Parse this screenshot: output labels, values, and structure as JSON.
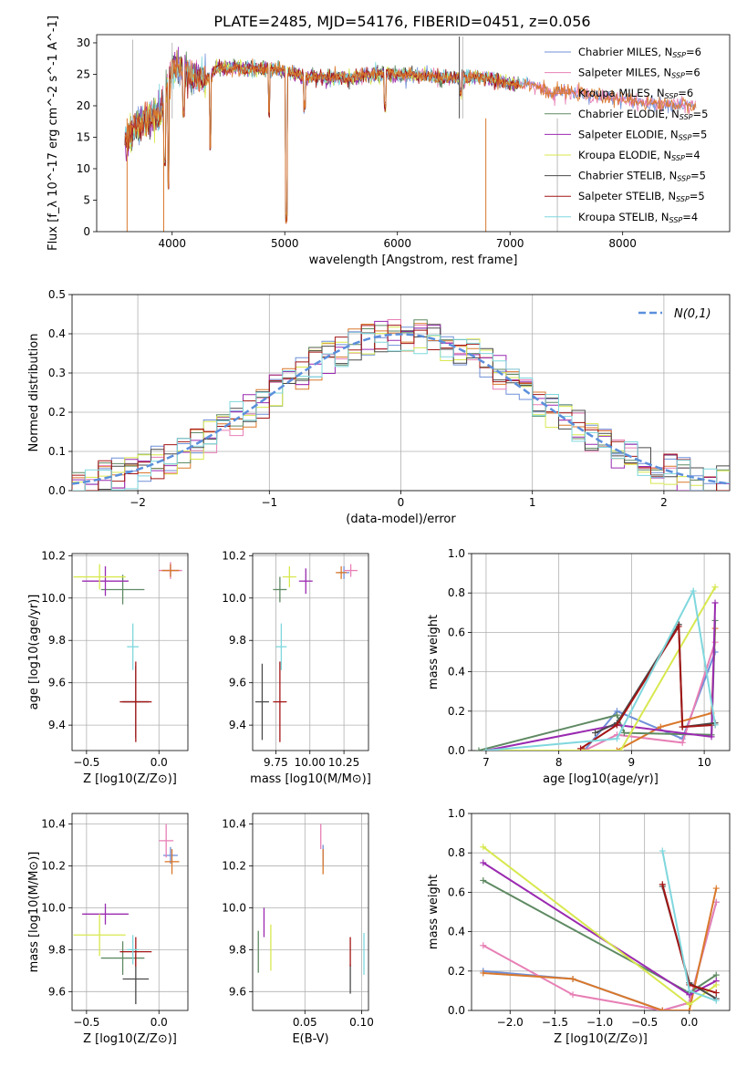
{
  "figure_title": "PLATE=2485, MJD=54176, FIBERID=0451, z=0.056",
  "series_names": [
    "Chabrier MILES, N_SSP=6",
    "Salpeter MILES, N_SSP=6",
    "Kroupa MILES, N_SSP=6",
    "Chabrier ELODIE, N_SSP=5",
    "Salpeter ELODIE, N_SSP=5",
    "Kroupa ELODIE, N_SSP=4",
    "Chabrier STELIB, N_SSP=5",
    "Salpeter STELIB, N_SSP=5",
    "Kroupa STELIB, N_SSP=4"
  ],
  "series_colors": [
    "#6f8fd8",
    "#e77fb5",
    "#d9782b",
    "#5f8a63",
    "#9a2ab0",
    "#d8e84f",
    "#4a4a4a",
    "#a31515",
    "#7fd7dd"
  ],
  "chart_data": [
    {
      "type": "line",
      "id": "spectrum",
      "title": "PLATE=2485, MJD=54176, FIBERID=0451, z=0.056",
      "xlabel": "wavelength [Angstrom, rest frame]",
      "ylabel": "Flux [f_λ 10^-17 erg cm^-2 s^-1 A^-1]",
      "xlim": [
        3330,
        8950
      ],
      "ylim": [
        0,
        31.3
      ],
      "xticks": [
        4000,
        5000,
        6000,
        7000,
        8000
      ],
      "yticks": [
        0,
        5,
        10,
        15,
        20,
        25,
        30
      ],
      "grid": false,
      "legend": "top-right",
      "continuum_x": [
        3600,
        3700,
        3800,
        3900,
        4000,
        4100,
        4200,
        4300,
        4400,
        4600,
        4800,
        5000,
        5200,
        5400,
        5600,
        5800,
        6000,
        6200,
        6400,
        6600,
        6800,
        7000,
        7200,
        7300,
        7400
      ],
      "continuum_y": [
        14.5,
        17,
        18,
        19,
        26,
        25.5,
        24.5,
        24,
        26,
        26,
        26,
        25.5,
        24.5,
        24.5,
        24.5,
        25,
        25,
        24.8,
        24.5,
        24.5,
        24.5,
        23.5,
        23.5,
        22.5,
        21.5
      ],
      "continuum_extension_x": [
        7000,
        7400,
        7800,
        8200,
        8600
      ],
      "continuum_extension_y": [
        23.5,
        22.5,
        21.5,
        20.5,
        20
      ],
      "absorption_lines": [
        [
          3933,
          11
        ],
        [
          3968,
          7.5
        ],
        [
          4102,
          19
        ],
        [
          4340,
          13.5
        ],
        [
          4861,
          19
        ],
        [
          5015,
          2
        ],
        [
          5175,
          20
        ],
        [
          5890,
          20
        ],
        [
          6563,
          22
        ]
      ],
      "spikes": [
        [
          3600,
          0
        ],
        [
          3650,
          30.5
        ],
        [
          3925,
          0
        ],
        [
          4000,
          30
        ],
        [
          6550,
          31
        ],
        [
          6580,
          31
        ],
        [
          6785,
          0
        ],
        [
          7420,
          0
        ]
      ]
    },
    {
      "type": "histogram",
      "id": "residuals",
      "xlabel": "(data-model)/error",
      "ylabel": "Normed distribution",
      "xlim": [
        -2.5,
        2.5
      ],
      "ylim": [
        0,
        0.5
      ],
      "xticks": [
        -2,
        -1,
        0,
        1,
        2
      ],
      "yticks": [
        0.0,
        0.1,
        0.2,
        0.3,
        0.4,
        0.5
      ],
      "grid": true,
      "legend": "top-right",
      "legend_label": "N(0,1)",
      "bin_range": [
        -2.5,
        2.5
      ],
      "bins": 50,
      "reference_curve": "gaussian mean 0, sigma 1"
    },
    {
      "type": "scatter",
      "id": "age_vs_Z",
      "xlabel": "Z [log10(Z/Z⊙)]",
      "ylabel": "age  [log10(age/yr)]",
      "xlim": [
        -0.6,
        0.2
      ],
      "ylim": [
        9.28,
        10.21
      ],
      "xticks": [
        -0.5,
        0.0
      ],
      "yticks": [
        9.4,
        9.6,
        9.8,
        10.0,
        10.2
      ],
      "grid": true,
      "points": [
        {
          "series": 0,
          "x": 0.08,
          "y": 10.13,
          "xerr": 0.05,
          "yerr": 0.03
        },
        {
          "series": 1,
          "x": 0.08,
          "y": 10.13,
          "xerr": 0.08,
          "yerr": 0.04
        },
        {
          "series": 2,
          "x": 0.08,
          "y": 10.13,
          "xerr": 0.06,
          "yerr": 0.03
        },
        {
          "series": 3,
          "x": -0.25,
          "y": 10.04,
          "xerr": 0.15,
          "yerr": 0.07
        },
        {
          "series": 4,
          "x": -0.37,
          "y": 10.08,
          "xerr": 0.16,
          "yerr": 0.07
        },
        {
          "series": 5,
          "x": -0.41,
          "y": 10.1,
          "xerr": 0.18,
          "yerr": 0.06
        },
        {
          "series": 6,
          "x": -0.16,
          "y": 9.51,
          "xerr": 0.09,
          "yerr": 0.17
        },
        {
          "series": 7,
          "x": -0.16,
          "y": 9.51,
          "xerr": 0.11,
          "yerr": 0.19
        },
        {
          "series": 8,
          "x": -0.18,
          "y": 9.77,
          "xerr": 0.04,
          "yerr": 0.11
        }
      ]
    },
    {
      "type": "scatter",
      "id": "age_vs_mass",
      "xlabel": "mass [log10(M/M⊙)]",
      "ylabel": "",
      "xlim": [
        9.58,
        10.43
      ],
      "ylim": [
        9.28,
        10.21
      ],
      "xticks": [
        9.75,
        10.0,
        10.25
      ],
      "xtick_labels": [
        "9.75",
        "10.00",
        "10.25"
      ],
      "yticks": [
        9.4,
        9.6,
        9.8,
        10.0,
        10.2
      ],
      "grid": true,
      "points": [
        {
          "series": 0,
          "x": 10.25,
          "y": 10.12,
          "xerr": 0.04,
          "yerr": 0.03
        },
        {
          "series": 1,
          "x": 10.3,
          "y": 10.13,
          "xerr": 0.05,
          "yerr": 0.03
        },
        {
          "series": 2,
          "x": 10.23,
          "y": 10.12,
          "xerr": 0.04,
          "yerr": 0.03
        },
        {
          "series": 3,
          "x": 9.78,
          "y": 10.04,
          "xerr": 0.05,
          "yerr": 0.06
        },
        {
          "series": 4,
          "x": 9.97,
          "y": 10.08,
          "xerr": 0.05,
          "yerr": 0.06
        },
        {
          "series": 5,
          "x": 9.85,
          "y": 10.1,
          "xerr": 0.05,
          "yerr": 0.05
        },
        {
          "series": 6,
          "x": 9.65,
          "y": 9.51,
          "xerr": 0.05,
          "yerr": 0.18
        },
        {
          "series": 7,
          "x": 9.78,
          "y": 9.51,
          "xerr": 0.05,
          "yerr": 0.19
        },
        {
          "series": 8,
          "x": 9.79,
          "y": 9.77,
          "xerr": 0.04,
          "yerr": 0.11
        }
      ]
    },
    {
      "type": "line",
      "id": "massweight_vs_age",
      "xlabel": "age  [log10(age/yr)]",
      "ylabel": "mass weight",
      "xlim": [
        6.8,
        10.35
      ],
      "ylim": [
        0,
        1.0
      ],
      "xticks": [
        7,
        8,
        9,
        10
      ],
      "yticks": [
        0.0,
        0.2,
        0.4,
        0.6,
        0.8,
        1.0
      ],
      "grid": true,
      "series": [
        {
          "index": 0,
          "x": [
            8.35,
            8.8,
            9.7,
            10.15
          ],
          "y": [
            0.0,
            0.2,
            0.06,
            0.5
          ]
        },
        {
          "index": 1,
          "x": [
            8.35,
            8.8,
            9.7,
            10.15
          ],
          "y": [
            0.0,
            0.08,
            0.04,
            0.55
          ]
        },
        {
          "index": 2,
          "x": [
            8.35,
            8.8,
            9.4,
            10.1,
            10.15
          ],
          "y": [
            0.0,
            0.0,
            0.12,
            0.19,
            0.62
          ]
        },
        {
          "index": 3,
          "x": [
            6.9,
            8.8,
            8.9,
            10.1,
            10.15
          ],
          "y": [
            0.0,
            0.18,
            0.09,
            0.08,
            0.66
          ]
        },
        {
          "index": 4,
          "x": [
            7.0,
            8.8,
            10.1,
            10.15
          ],
          "y": [
            0.0,
            0.13,
            0.07,
            0.75
          ]
        },
        {
          "index": 5,
          "x": [
            7.0,
            8.85,
            10.15
          ],
          "y": [
            0.0,
            0.0,
            0.83
          ]
        },
        {
          "index": 6,
          "x": [
            8.5,
            8.8,
            9.65,
            9.7,
            10.15
          ],
          "y": [
            0.09,
            0.14,
            0.64,
            0.12,
            0.14
          ]
        },
        {
          "index": 7,
          "x": [
            8.3,
            8.8,
            9.65,
            9.7,
            10.15
          ],
          "y": [
            0.01,
            0.13,
            0.63,
            0.12,
            0.13
          ]
        },
        {
          "index": 8,
          "x": [
            7.0,
            8.8,
            9.85,
            10.15
          ],
          "y": [
            0.0,
            0.06,
            0.81,
            0.13
          ]
        }
      ]
    },
    {
      "type": "scatter",
      "id": "mass_vs_Z",
      "xlabel": "Z [log10(Z/Z⊙)]",
      "ylabel": "mass [log10(M/M⊙)]",
      "xlim": [
        -0.6,
        0.2
      ],
      "ylim": [
        9.51,
        10.45
      ],
      "xticks": [
        -0.5,
        0.0
      ],
      "yticks": [
        9.6,
        9.8,
        10.0,
        10.2,
        10.4
      ],
      "grid": true,
      "points": [
        {
          "series": 0,
          "x": 0.08,
          "y": 10.25,
          "xerr": 0.05,
          "yerr": 0.04
        },
        {
          "series": 1,
          "x": 0.05,
          "y": 10.32,
          "xerr": 0.05,
          "yerr": 0.08
        },
        {
          "series": 2,
          "x": 0.09,
          "y": 10.22,
          "xerr": 0.05,
          "yerr": 0.06
        },
        {
          "series": 3,
          "x": -0.25,
          "y": 9.76,
          "xerr": 0.15,
          "yerr": 0.08
        },
        {
          "series": 4,
          "x": -0.37,
          "y": 9.97,
          "xerr": 0.16,
          "yerr": 0.05
        },
        {
          "series": 5,
          "x": -0.41,
          "y": 9.87,
          "xerr": 0.18,
          "yerr": 0.1
        },
        {
          "series": 6,
          "x": -0.16,
          "y": 9.66,
          "xerr": 0.09,
          "yerr": 0.12
        },
        {
          "series": 7,
          "x": -0.16,
          "y": 9.79,
          "xerr": 0.11,
          "yerr": 0.07
        },
        {
          "series": 8,
          "x": -0.18,
          "y": 9.8,
          "xerr": 0.04,
          "yerr": 0.07
        }
      ]
    },
    {
      "type": "scatter",
      "id": "mass_vs_ebv",
      "xlabel": "E(B-V)",
      "ylabel": "",
      "xlim": [
        0.004,
        0.106
      ],
      "ylim": [
        9.51,
        10.45
      ],
      "xticks": [
        0.05,
        0.1
      ],
      "xtick_labels": [
        "0.05",
        "0.10"
      ],
      "yticks": [
        9.6,
        9.8,
        10.0,
        10.2,
        10.4
      ],
      "grid": true,
      "points": [
        {
          "series": 0,
          "x": 0.066,
          "y": 10.25,
          "xerr": 0,
          "yerr": 0.05
        },
        {
          "series": 1,
          "x": 0.064,
          "y": 10.34,
          "xerr": 0,
          "yerr": 0.06
        },
        {
          "series": 2,
          "x": 0.066,
          "y": 10.22,
          "xerr": 0,
          "yerr": 0.06
        },
        {
          "series": 3,
          "x": 0.009,
          "y": 9.79,
          "xerr": 0,
          "yerr": 0.1
        },
        {
          "series": 4,
          "x": 0.014,
          "y": 9.93,
          "xerr": 0,
          "yerr": 0.07
        },
        {
          "series": 5,
          "x": 0.02,
          "y": 9.81,
          "xerr": 0,
          "yerr": 0.11
        },
        {
          "series": 6,
          "x": 0.09,
          "y": 9.66,
          "xerr": 0,
          "yerr": 0.07
        },
        {
          "series": 7,
          "x": 0.09,
          "y": 9.79,
          "xerr": 0,
          "yerr": 0.07
        },
        {
          "series": 8,
          "x": 0.102,
          "y": 9.78,
          "xerr": 0,
          "yerr": 0.1
        }
      ]
    },
    {
      "type": "line",
      "id": "massweight_vs_Z",
      "xlabel": "Z [log10(Z/Z⊙)]",
      "ylabel": "mass weight",
      "xlim": [
        -2.43,
        0.45
      ],
      "ylim": [
        0,
        1.0
      ],
      "xticks": [
        -2.0,
        -1.5,
        -1.0,
        -0.5,
        0.0
      ],
      "yticks": [
        0.0,
        0.2,
        0.4,
        0.6,
        0.8,
        1.0
      ],
      "grid": true,
      "series": [
        {
          "index": 0,
          "x": [
            -2.3,
            -1.3,
            -0.3,
            0.0,
            0.3
          ],
          "y": [
            0.2,
            0.16,
            0.0,
            0.04,
            0.55
          ]
        },
        {
          "index": 1,
          "x": [
            -2.3,
            -1.3,
            -0.3,
            0.0,
            0.3
          ],
          "y": [
            0.33,
            0.08,
            0.0,
            0.04,
            0.55
          ]
        },
        {
          "index": 2,
          "x": [
            -2.3,
            -1.3,
            -0.3,
            0.0,
            0.3
          ],
          "y": [
            0.19,
            0.16,
            0.0,
            0.0,
            0.62
          ]
        },
        {
          "index": 3,
          "x": [
            -2.3,
            0.0,
            0.3
          ],
          "y": [
            0.66,
            0.09,
            0.18
          ]
        },
        {
          "index": 4,
          "x": [
            -2.3,
            0.0,
            0.3
          ],
          "y": [
            0.75,
            0.08,
            0.15
          ]
        },
        {
          "index": 5,
          "x": [
            -2.3,
            0.0,
            0.3
          ],
          "y": [
            0.83,
            0.03,
            0.13
          ]
        },
        {
          "index": 6,
          "x": [
            -0.3,
            0.0,
            0.3
          ],
          "y": [
            0.63,
            0.14,
            0.06
          ]
        },
        {
          "index": 7,
          "x": [
            -0.3,
            0.0,
            0.3
          ],
          "y": [
            0.64,
            0.13,
            0.09
          ]
        },
        {
          "index": 8,
          "x": [
            -0.3,
            0.0,
            0.3
          ],
          "y": [
            0.81,
            0.1,
            0.05
          ]
        }
      ]
    }
  ]
}
